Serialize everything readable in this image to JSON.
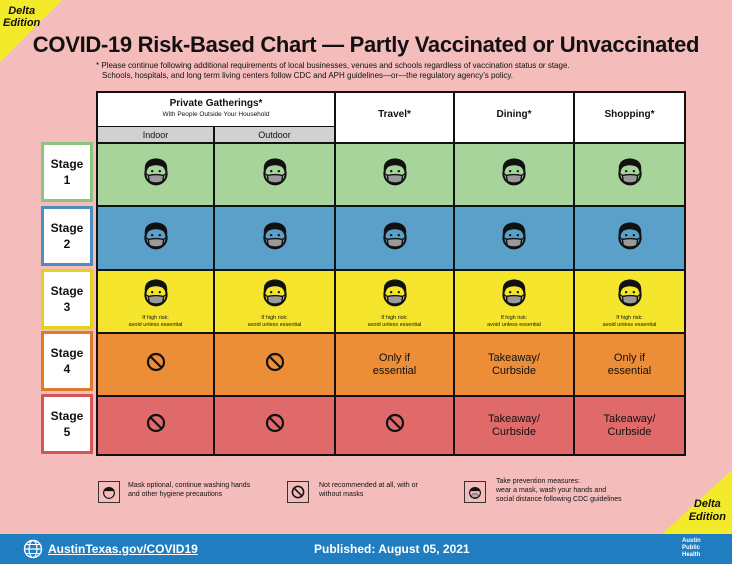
{
  "edition_label": "Delta Edition",
  "title": "COVID-19 Risk-Based Chart — Partly Vaccinated or Unvaccinated",
  "note_lines": [
    "* Please continue following additional requirements of local businesses, venues and schools regardless of vaccination status or stage.",
    "Schools, hospitals, and long term living centers follow CDC and APH guidelines—or—the regulatory agency’s policy."
  ],
  "header": {
    "private_gatherings": "Private Gatherings*",
    "private_sub": "With People Outside Your Household",
    "indoor": "Indoor",
    "outdoor": "Outdoor",
    "travel": "Travel*",
    "dining": "Dining*",
    "shopping": "Shopping*"
  },
  "stages": [
    {
      "label": "Stage",
      "num": "1",
      "color": "#a6d49a",
      "border": "#8bc47f"
    },
    {
      "label": "Stage",
      "num": "2",
      "color": "#5aa0c9",
      "border": "#4a8fbd"
    },
    {
      "label": "Stage",
      "num": "3",
      "color": "#f5e62d",
      "border": "#e3d21c"
    },
    {
      "label": "Stage",
      "num": "4",
      "color": "#ec8d37",
      "border": "#e0792a"
    },
    {
      "label": "Stage",
      "num": "5",
      "color": "#e0696a",
      "border": "#d45758"
    }
  ],
  "cells": {
    "stage3_note": [
      "If high risk:",
      "avoid unless essential"
    ],
    "only_if": [
      "Only if",
      "essential"
    ],
    "takeaway": [
      "Takeaway/",
      "Curbside"
    ]
  },
  "legend": {
    "optional": [
      "Mask optional, continue washing hands",
      "and other hygiene precautions"
    ],
    "not_recommended": [
      "Not recommended at all, with or",
      "without masks"
    ],
    "prevention": [
      "Take prevention measures:",
      "wear a mask, wash your hands and",
      "social distance following CDC guidelines"
    ]
  },
  "footer": {
    "link": "AustinTexas.gov/COVID19",
    "published": "Published: August 05, 2021",
    "aph": [
      "Austin",
      "Public",
      "Health"
    ]
  }
}
